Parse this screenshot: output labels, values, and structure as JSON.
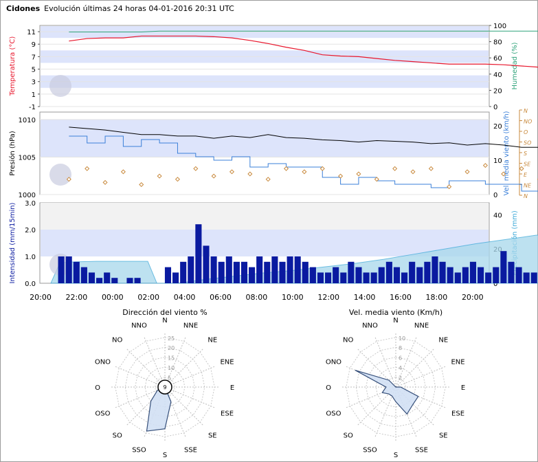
{
  "header": {
    "station": "Cidones",
    "title": "Evolución últimas 24 horas 04-01-2016 20:31 UTC"
  },
  "colors": {
    "temperature": "#e8152b",
    "humidity": "#2fa37a",
    "pressure": "#000000",
    "wind_speed": "#3a7fd8",
    "wind_dir": "#c8893c",
    "intensity": "#0a1aa0",
    "precip_fill": "#a8d8ec",
    "precip_line": "#3aa8d8",
    "band": "#dde4fb",
    "rose_fill": "#d2e0f5",
    "rose_line": "#1f3b6b"
  },
  "x_ticks": [
    "20:00",
    "22:00",
    "00:00",
    "02:00",
    "04:00",
    "06:00",
    "08:00",
    "10:00",
    "12:00",
    "14:00",
    "16:00",
    "18:00",
    "20:00"
  ],
  "chart_data": [
    {
      "type": "line",
      "name": "temperature-humidity",
      "y_left_label": "Temperatura (°C)",
      "y_right_label": "Humedad (%)",
      "y_left_ticks": [
        "11",
        "9",
        "7",
        "5",
        "3",
        "1",
        "-1"
      ],
      "y_right_ticks": [
        "100",
        "80",
        "60",
        "40",
        "20",
        "0"
      ],
      "y_left_range": [
        -1,
        12
      ],
      "y_right_range": [
        0,
        100
      ],
      "x_hours": [
        0.5,
        1,
        1.5,
        2,
        2.5,
        3,
        3.5,
        4,
        4.5,
        5,
        5.5,
        6,
        6.5,
        7,
        7.5,
        8,
        8.5,
        9,
        9.5,
        10,
        10.5,
        11,
        11.5,
        12,
        12.5,
        13,
        13.5,
        14,
        14.5,
        15,
        15.5,
        16,
        16.5,
        17,
        17.5,
        18,
        18.5,
        19,
        19.5,
        20,
        20.5,
        21,
        21.5,
        22,
        22.5,
        23,
        23.5,
        24
      ],
      "temperature": [
        9.5,
        9.9,
        10.0,
        10.0,
        10.3,
        10.3,
        10.3,
        10.3,
        10.2,
        10.0,
        9.6,
        9.1,
        8.5,
        8.0,
        7.3,
        7.1,
        7.0,
        6.7,
        6.4,
        6.2,
        6.0,
        5.8,
        5.8,
        5.8,
        5.7,
        5.5,
        5.3,
        5.3,
        5.5,
        5.6,
        5.8,
        5.6,
        5.2,
        5.1,
        5.0,
        5.0,
        5.0,
        4.9,
        4.8,
        4.8,
        4.4,
        4.0,
        3.4,
        3.0,
        2.8,
        2.4,
        1.9,
        1.3
      ],
      "humidity": [
        92,
        92,
        92,
        92,
        92,
        93,
        93,
        93,
        93,
        93,
        93,
        93,
        93,
        93,
        93,
        93,
        93,
        93,
        93,
        93,
        93,
        93,
        93,
        93,
        93,
        93,
        93,
        93,
        93,
        93,
        93,
        93,
        93,
        93,
        93,
        93,
        93,
        93,
        93,
        93,
        93,
        93,
        93,
        93,
        93,
        93,
        93,
        92
      ]
    },
    {
      "type": "line",
      "name": "pressure-wind",
      "y_left_label": "Presión (hPa)",
      "y_right_label": "Vel. media viento (km/h)",
      "y_left_ticks": [
        "1010",
        "1005",
        "1000"
      ],
      "y_right_ticks": [
        "20",
        "10",
        "0"
      ],
      "y_dir_ticks": [
        "N",
        "NO",
        "O",
        "SO",
        "S",
        "SE",
        "E",
        "NE",
        "N"
      ],
      "y_left_range": [
        1000,
        1011
      ],
      "y_right_range": [
        0,
        24
      ],
      "x_hours": [
        0.5,
        1,
        1.5,
        2,
        2.5,
        3,
        3.5,
        4,
        4.5,
        5,
        5.5,
        6,
        6.5,
        7,
        7.5,
        8,
        8.5,
        9,
        9.5,
        10,
        10.5,
        11,
        11.5,
        12,
        12.5,
        13,
        13.5,
        14,
        14.5,
        15,
        15.5,
        16,
        16.5,
        17,
        17.5,
        18,
        18.5,
        19,
        19.5,
        20,
        20.5,
        21,
        21.5,
        22,
        22.5,
        23,
        23.5,
        24
      ],
      "pressure": [
        1009,
        1008.8,
        1008.6,
        1008.3,
        1008.0,
        1008.0,
        1007.8,
        1007.8,
        1007.5,
        1007.8,
        1007.6,
        1008.0,
        1007.6,
        1007.5,
        1007.3,
        1007.2,
        1007.0,
        1007.2,
        1007.1,
        1007.0,
        1006.8,
        1006.9,
        1006.6,
        1006.8,
        1006.6,
        1006.3,
        1006.3,
        1006.1,
        1006.1,
        1005.9,
        1005.7,
        1005.0,
        1004.5,
        1003.5,
        1002.8,
        1002.0,
        1001.8,
        1002.2,
        1002.8,
        1003.0,
        1003.2,
        1003.5,
        1004.0,
        1004.5,
        1004.6,
        1005.0,
        1005.6,
        1006.0
      ],
      "wind_speed": [
        17,
        15,
        17,
        14,
        16,
        15,
        12,
        11,
        10,
        11,
        8,
        9,
        8,
        8,
        5,
        3,
        5,
        4,
        3,
        3,
        2,
        4,
        4,
        3,
        3,
        1,
        1,
        2,
        1,
        0,
        0,
        1,
        0,
        1,
        1,
        0,
        0,
        1,
        0,
        1,
        1,
        1,
        2,
        0,
        1,
        1,
        1,
        4
      ],
      "wind_dir": [
        6.5,
        5.5,
        6.8,
        5.8,
        7.0,
        6.2,
        6.5,
        5.5,
        6.2,
        5.8,
        6.0,
        6.5,
        5.5,
        5.8,
        5.5,
        6.2,
        6.0,
        6.5,
        5.5,
        5.8,
        5.5,
        7.2,
        5.8,
        5.2,
        6.0,
        5.5,
        6.5,
        5.0,
        6.5,
        5.8,
        6.0,
        6.8,
        5.5,
        6.0,
        5.5,
        6.5,
        6.0,
        5.5,
        6.2,
        5.6,
        6.2,
        5.8,
        5.5,
        6.0,
        5.8,
        6.5,
        5.5,
        5.8
      ]
    },
    {
      "type": "bar",
      "name": "intensity-precipitation",
      "y_left_label": "Intensidad (mm/15min)",
      "y_right_label": "Precipitación (mm)",
      "y_left_ticks": [
        "3.0",
        "2.0",
        "1.0",
        "0.0"
      ],
      "y_right_ticks": [
        "40",
        "20",
        "0"
      ],
      "y_left_range": [
        0,
        3
      ],
      "y_right_range": [
        0,
        47
      ],
      "intensity": [
        1.0,
        1.0,
        0.8,
        0.6,
        0.4,
        0.2,
        0.4,
        0.2,
        0,
        0.2,
        0.2,
        0,
        0,
        0,
        0.6,
        0.4,
        0.8,
        1.0,
        2.2,
        1.4,
        1.0,
        0.8,
        1.0,
        0.8,
        0.8,
        0.6,
        1.0,
        0.8,
        1.0,
        0.8,
        1.0,
        1.0,
        0.8,
        0.6,
        0.4,
        0.4,
        0.6,
        0.4,
        0.8,
        0.6,
        0.4,
        0.4,
        0.6,
        0.8,
        0.6,
        0.4,
        0.8,
        0.6,
        0.8,
        1.0,
        0.8,
        0.6,
        0.4,
        0.6,
        0.8,
        0.6,
        0.4,
        0.6,
        1.2,
        0.8,
        0.6,
        0.4,
        0.4,
        0.6,
        0.8,
        0.6,
        0.4,
        0.6,
        0.4,
        0.4,
        0.6,
        0.4,
        0.4,
        0.6,
        0.4,
        0.4,
        0.4,
        0.2,
        0.2,
        0.2,
        0.6,
        0.4,
        0.2,
        0.4,
        0.4,
        0.6,
        0.4,
        0.8,
        0.4,
        0.6,
        1.0,
        0.8,
        0.4,
        0.6,
        0.4,
        0.4,
        0.2,
        0.4,
        0.4,
        0.2,
        0.4,
        0.4,
        0.2,
        0.4,
        0.4,
        0.4,
        0.4,
        0.4,
        0.4,
        0.2,
        0.4,
        0.2,
        0.2
      ],
      "accumulated": [
        [
          0,
          0
        ],
        [
          0.3,
          12
        ],
        [
          0.8,
          12.5
        ],
        [
          1.5,
          12.8
        ],
        [
          2.6,
          12.8
        ],
        [
          3.2,
          12.8
        ],
        [
          3.5,
          0
        ],
        [
          4.2,
          0
        ],
        [
          5,
          2
        ],
        [
          6,
          4
        ],
        [
          7,
          6
        ],
        [
          8,
          7.5
        ],
        [
          9,
          9.5
        ],
        [
          10,
          11.5
        ],
        [
          11,
          14
        ],
        [
          12,
          17
        ],
        [
          13,
          20
        ],
        [
          14,
          23
        ],
        [
          15,
          25.5
        ],
        [
          16,
          28
        ],
        [
          17,
          30
        ],
        [
          18,
          32
        ],
        [
          19,
          34
        ],
        [
          20,
          36
        ],
        [
          21,
          38
        ],
        [
          22,
          39.5
        ],
        [
          23,
          41.5
        ],
        [
          24,
          43
        ],
        [
          25,
          44
        ],
        [
          26,
          45
        ],
        [
          27,
          46
        ],
        [
          28,
          46.5
        ],
        [
          28.6,
          46.5
        ],
        [
          28.7,
          0
        ]
      ]
    },
    {
      "type": "radar",
      "name": "wind-direction-rose",
      "title": "Dirección del viento %",
      "directions": [
        "N",
        "NNE",
        "NE",
        "ENE",
        "E",
        "ESE",
        "SE",
        "SSE",
        "S",
        "SSO",
        "SO",
        "OSO",
        "O",
        "ONO",
        "NO",
        "NNO"
      ],
      "ring_labels": [
        "5",
        "10",
        "15",
        "20",
        "25"
      ],
      "max": 27,
      "calm_label": "9",
      "values": [
        0,
        0,
        0,
        0,
        0,
        0,
        0,
        8,
        21,
        24,
        10,
        4,
        0,
        0,
        0,
        0
      ]
    },
    {
      "type": "radar",
      "name": "wind-speed-rose",
      "title": "Vel. media viento (Km/h)",
      "directions": [
        "N",
        "NNE",
        "NE",
        "ENE",
        "E",
        "ESE",
        "SE",
        "SSE",
        "S",
        "SSO",
        "SO",
        "OSO",
        "O",
        "ONO",
        "NO",
        "NNO"
      ],
      "ring_labels": [
        "2",
        "4",
        "6",
        "8",
        "10"
      ],
      "max": 11,
      "values": [
        0,
        0,
        0,
        0,
        1,
        5,
        5,
        6,
        3,
        2,
        2,
        3,
        2,
        9,
        2,
        0
      ]
    }
  ]
}
